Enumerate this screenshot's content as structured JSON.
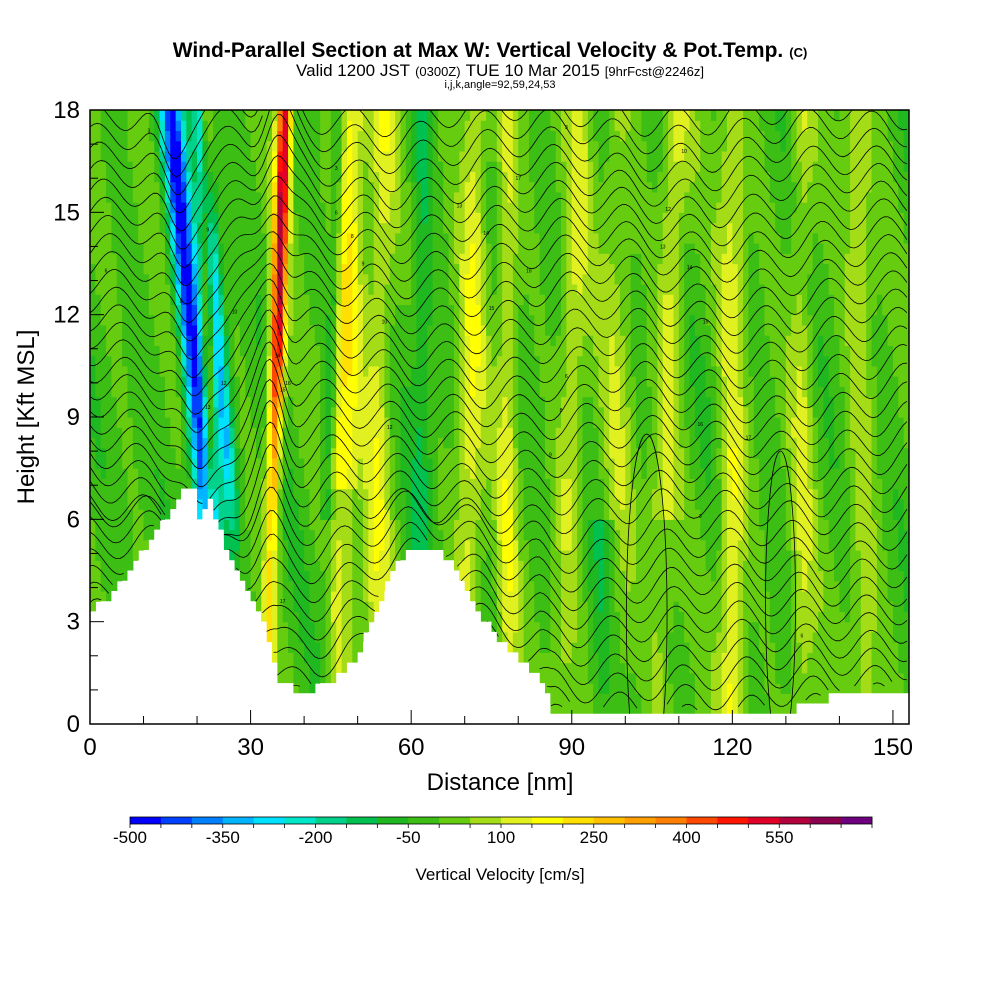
{
  "chart_data": {
    "type": "heatmap",
    "title": "Wind-Parallel Section at Max W: Vertical Velocity & Pot.Temp.",
    "title_mark": "(C)",
    "subtitle_main_a": "Valid 1200 JST",
    "subtitle_small_a": "(0300Z)",
    "subtitle_main_b": "TUE 10 Mar 2015",
    "subtitle_small_b": "[9hrFcst@2246z]",
    "subtitle_line3": "i,j,k,angle=92,59,24,53",
    "xlabel": "Distance [nm]",
    "ylabel": "Height [Kft MSL]",
    "xlim": [
      0,
      153
    ],
    "ylim": [
      0,
      18
    ],
    "x_ticks": [
      0,
      30,
      60,
      90,
      120,
      150
    ],
    "y_ticks": [
      0,
      3,
      6,
      9,
      12,
      15,
      18
    ],
    "colorbar": {
      "label": "Vertical Velocity [cm/s]",
      "min": -500,
      "max": 650,
      "step": 50,
      "tick_labels": [
        "-500",
        "-350",
        "-200",
        "-50",
        "100",
        "250",
        "400",
        "550"
      ],
      "tick_values": [
        -500,
        -350,
        -200,
        -50,
        100,
        250,
        400,
        550
      ],
      "colors": [
        "#0000ff",
        "#0040ff",
        "#0080ff",
        "#00b4ff",
        "#00e0ff",
        "#00e6c8",
        "#00d28c",
        "#00c050",
        "#20b820",
        "#3cbe14",
        "#66cc10",
        "#a4dd18",
        "#e0f020",
        "#ffff00",
        "#ffe000",
        "#ffc000",
        "#ffa000",
        "#ff8000",
        "#ff4800",
        "#ff1400",
        "#e00028",
        "#b4003c",
        "#8c0050",
        "#6e0080"
      ]
    },
    "vertical_velocity_features": [
      {
        "x": 19,
        "y": 12.5,
        "value": -450,
        "type": "downdraft"
      },
      {
        "x": 25,
        "y": 7,
        "value": -300,
        "type": "downdraft"
      },
      {
        "x": 36,
        "y": 13,
        "value": 600,
        "type": "updraft"
      },
      {
        "x": 48,
        "y": 14,
        "value": 200,
        "type": "updraft"
      },
      {
        "x": 63,
        "y": 11,
        "value": 100,
        "type": "updraft"
      },
      {
        "x": 100,
        "y": 12,
        "value": 150,
        "type": "updraft"
      },
      {
        "x": 120,
        "y": 3,
        "value": 100,
        "type": "updraft"
      }
    ],
    "terrain_profile": [
      [
        0,
        3.3
      ],
      [
        3,
        3.6
      ],
      [
        8,
        4.6
      ],
      [
        12,
        5.6
      ],
      [
        16,
        6.4
      ],
      [
        17,
        6.8
      ],
      [
        19,
        6.8
      ],
      [
        20,
        6.0
      ],
      [
        22,
        6.5
      ],
      [
        23,
        6.0
      ],
      [
        25,
        5.2
      ],
      [
        27,
        4.5
      ],
      [
        29,
        3.8
      ],
      [
        32,
        2.9
      ],
      [
        35,
        1.2
      ],
      [
        38,
        1.0
      ],
      [
        42,
        1.0
      ],
      [
        46,
        1.4
      ],
      [
        50,
        2.0
      ],
      [
        54,
        3.5
      ],
      [
        57,
        4.6
      ],
      [
        60,
        5.2
      ],
      [
        64,
        5.2
      ],
      [
        67,
        4.7
      ],
      [
        72,
        3.3
      ],
      [
        76,
        2.4
      ],
      [
        80,
        1.9
      ],
      [
        84,
        1.3
      ],
      [
        86,
        0.4
      ],
      [
        110,
        0.3
      ],
      [
        130,
        0.3
      ],
      [
        134,
        0.6
      ],
      [
        144,
        1.0
      ],
      [
        153,
        1.0
      ]
    ],
    "isentrope_labels": [
      "3",
      "6",
      "8",
      "9",
      "10",
      "12",
      "13",
      "14",
      "15",
      "16",
      "17"
    ]
  }
}
